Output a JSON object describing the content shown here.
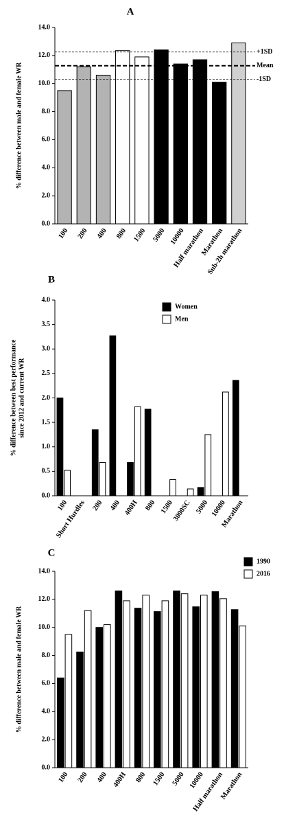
{
  "chart_data": [
    {
      "type": "bar",
      "title": "A",
      "y_label": [
        "% difference between male and female WR"
      ],
      "categories": [
        "100",
        "200",
        "400",
        "800",
        "1500",
        "5000",
        "10000",
        "Half marathon",
        "Marathon",
        "Sub-2h marathon"
      ],
      "values": [
        9.5,
        11.2,
        10.6,
        12.35,
        11.9,
        12.4,
        11.4,
        11.7,
        10.1,
        12.9
      ],
      "colors": [
        "#b3b3b3",
        "#b3b3b3",
        "#b3b3b3",
        "#ffffff",
        "#ffffff",
        "#000000",
        "#000000",
        "#000000",
        "#000000",
        "#d0d0d0"
      ],
      "reference_lines": [
        {
          "value": 12.25,
          "label": "+1SD",
          "style": "dashed"
        },
        {
          "value": 11.27,
          "label": "Mean",
          "style": "bold-dashed"
        },
        {
          "value": 10.3,
          "label": "-1SD",
          "style": "dashed"
        }
      ],
      "ylim": [
        0,
        14
      ],
      "yticks": [
        {
          "value": 0,
          "label": "0.0"
        },
        {
          "value": 2,
          "label": "2.0"
        },
        {
          "value": 4,
          "label": "4.0"
        },
        {
          "value": 6,
          "label": "6.0"
        },
        {
          "value": 8,
          "label": "8.0"
        },
        {
          "value": 10,
          "label": "10.0"
        },
        {
          "value": 12,
          "label": "12.0"
        },
        {
          "value": 14,
          "label": "14.0"
        }
      ]
    },
    {
      "type": "grouped-bar",
      "title": "B",
      "y_label": [
        "% difference between best performance",
        "since 2012 and current WR"
      ],
      "categories": [
        "100",
        "Short Hurdles",
        "200",
        "400",
        "400H",
        "800",
        "1500",
        "3000SC",
        "5000",
        "10000",
        "Marathon"
      ],
      "series": [
        {
          "name": "Women",
          "color": "#000000",
          "values": [
            2.0,
            null,
            1.35,
            3.27,
            0.68,
            1.77,
            null,
            null,
            0.17,
            null,
            2.36
          ]
        },
        {
          "name": "Men",
          "color": "#ffffff",
          "values": [
            0.52,
            null,
            0.68,
            null,
            1.82,
            null,
            0.33,
            0.14,
            1.25,
            2.12,
            null
          ]
        }
      ],
      "legend": "inside-top-right",
      "ylim": [
        0,
        4
      ],
      "yticks": [
        {
          "value": 0,
          "label": "0.0"
        },
        {
          "value": 0.5,
          "label": "0.5"
        },
        {
          "value": 1,
          "label": "1.0"
        },
        {
          "value": 1.5,
          "label": "1.5"
        },
        {
          "value": 2,
          "label": "2.0"
        },
        {
          "value": 2.5,
          "label": "2.5"
        },
        {
          "value": 3,
          "label": "3.0"
        },
        {
          "value": 3.5,
          "label": "3.5"
        },
        {
          "value": 4,
          "label": "4.0"
        }
      ]
    },
    {
      "type": "grouped-bar",
      "title": "C",
      "y_label": [
        "% difference between male and female WR"
      ],
      "categories": [
        "100",
        "200",
        "400",
        "400H",
        "800",
        "1500",
        "5000",
        "10000",
        "Half marathon",
        "Marathon"
      ],
      "series": [
        {
          "name": "1990",
          "color": "#000000",
          "values": [
            6.4,
            8.25,
            10.0,
            12.6,
            11.37,
            11.13,
            12.6,
            11.47,
            12.55,
            11.27
          ]
        },
        {
          "name": "2016",
          "color": "#ffffff",
          "values": [
            9.5,
            11.2,
            10.2,
            11.9,
            12.3,
            11.9,
            12.4,
            12.3,
            12.05,
            10.1
          ]
        }
      ],
      "legend": "outside-top-right",
      "ylim": [
        0,
        14
      ],
      "yticks": [
        {
          "value": 0,
          "label": "0.0"
        },
        {
          "value": 2,
          "label": "2.0"
        },
        {
          "value": 4,
          "label": "4.0"
        },
        {
          "value": 6,
          "label": "6.0"
        },
        {
          "value": 8,
          "label": "8.0"
        },
        {
          "value": 10,
          "label": "10.0"
        },
        {
          "value": 12,
          "label": "12.0"
        },
        {
          "value": 14,
          "label": "14.0"
        }
      ]
    }
  ]
}
